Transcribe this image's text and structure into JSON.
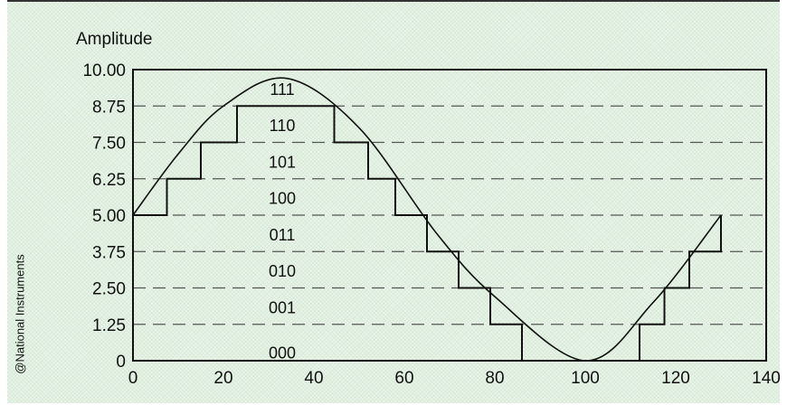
{
  "credit": "@National Instruments",
  "chart_data": {
    "type": "line",
    "title": "",
    "ylabel": "Amplitude",
    "xlabel": "",
    "xlim": [
      0,
      140
    ],
    "ylim": [
      0,
      10
    ],
    "x_ticks": [
      0,
      20,
      40,
      60,
      80,
      100,
      120,
      140
    ],
    "y_ticks": [
      "0",
      "1.25",
      "2.50",
      "3.75",
      "5.00",
      "6.25",
      "7.50",
      "8.75",
      "10.00"
    ],
    "grid": "dashed horizontal lines at each y tick",
    "series": [
      {
        "kind": "sine",
        "x": [
          0,
          10,
          20,
          34,
          50,
          67,
          80,
          100,
          115,
          130
        ],
        "y": [
          5.0,
          7.1,
          8.75,
          9.7,
          8.0,
          4.4,
          2.2,
          0.0,
          2.0,
          5.0
        ],
        "color": "#111111"
      },
      {
        "kind": "quantized",
        "x": [
          0,
          7.5,
          7.5,
          15,
          15,
          23,
          23,
          44.5,
          44.5,
          52,
          52,
          58,
          58,
          65,
          65,
          72,
          72,
          79,
          79,
          86,
          86,
          112,
          112,
          117.5,
          117.5,
          123,
          123,
          130,
          130
        ],
        "y": [
          5.0,
          5.0,
          6.25,
          6.25,
          7.5,
          7.5,
          8.75,
          8.75,
          7.5,
          7.5,
          6.25,
          6.25,
          5.0,
          5.0,
          3.75,
          3.75,
          2.5,
          2.5,
          1.25,
          1.25,
          0.0,
          0.0,
          1.25,
          1.25,
          2.5,
          2.5,
          3.75,
          3.75,
          5.0
        ],
        "color": "#111111"
      }
    ],
    "code_labels": [
      {
        "text": "111",
        "x": 33,
        "y": 9.35
      },
      {
        "text": "110",
        "x": 33,
        "y": 8.1
      },
      {
        "text": "101",
        "x": 33,
        "y": 6.85
      },
      {
        "text": "100",
        "x": 33,
        "y": 5.6
      },
      {
        "text": "011",
        "x": 33,
        "y": 4.35
      },
      {
        "text": "010",
        "x": 33,
        "y": 3.1
      },
      {
        "text": "001",
        "x": 33,
        "y": 1.85
      },
      {
        "text": "000",
        "x": 33,
        "y": 0.3
      }
    ]
  }
}
